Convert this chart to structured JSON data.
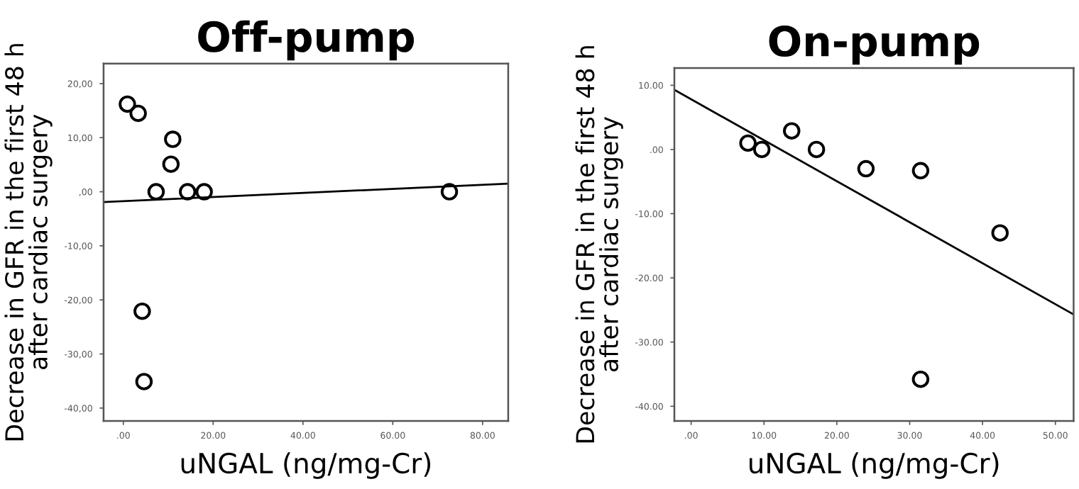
{
  "chart_data": [
    {
      "type": "scatter",
      "title": "Off-pump",
      "xlabel": "uNGAL (ng/mg-Cr)",
      "ylabel": "Decrease in GFR in the first 48 h\nafter cardiac surgery",
      "grid": false,
      "legend": false,
      "xlim": [
        -4.4,
        85.7
      ],
      "ylim": [
        -42.4,
        23.7
      ],
      "xticks": [
        {
          "value": 0,
          "label": ".00"
        },
        {
          "value": 20,
          "label": "20.00"
        },
        {
          "value": 40,
          "label": "40.00"
        },
        {
          "value": 60,
          "label": "60.00"
        },
        {
          "value": 80,
          "label": "80.00"
        }
      ],
      "yticks": [
        {
          "value": 20,
          "label": "20,00"
        },
        {
          "value": 10,
          "label": "10,00"
        },
        {
          "value": 0,
          "label": ",00"
        },
        {
          "value": -10,
          "label": "-10,00"
        },
        {
          "value": -20,
          "label": "-20,00"
        },
        {
          "value": -30,
          "label": "-30,00"
        },
        {
          "value": -40,
          "label": "-40,00"
        }
      ],
      "series": [
        {
          "marker": "circle",
          "color": "#000000",
          "x": [
            0.9,
            3.3,
            11.0,
            10.6,
            7.3,
            14.3,
            18.0,
            72.6,
            4.2,
            4.6
          ],
          "values": [
            16.2,
            14.5,
            9.7,
            5.1,
            0,
            0,
            0,
            0,
            -22.1,
            -35.1
          ]
        },
        {
          "type": "line",
          "color": "#000000",
          "x": [
            -4.4,
            85.7
          ],
          "values": [
            -1.9,
            1.5
          ]
        }
      ]
    },
    {
      "type": "scatter",
      "title": "On-pump",
      "xlabel": "uNGAL (ng/mg-Cr)",
      "ylabel": "Decrease in GFR in the first 48 h\nafter cardiac surgery",
      "grid": false,
      "legend": false,
      "xlim": [
        -2.3,
        52.5
      ],
      "ylim": [
        -42.3,
        12.7
      ],
      "xticks": [
        {
          "value": 0,
          "label": ".00"
        },
        {
          "value": 10,
          "label": "10.00"
        },
        {
          "value": 20,
          "label": "20.00"
        },
        {
          "value": 30,
          "label": "30.00"
        },
        {
          "value": 40,
          "label": "40.00"
        },
        {
          "value": 50,
          "label": "50.00"
        }
      ],
      "yticks": [
        {
          "value": 10,
          "label": "10.00"
        },
        {
          "value": 0,
          "label": ".00"
        },
        {
          "value": -10,
          "label": "-10.00"
        },
        {
          "value": -20,
          "label": "-20.00"
        },
        {
          "value": -30,
          "label": "-30.00"
        },
        {
          "value": -40,
          "label": "-40.00"
        }
      ],
      "series": [
        {
          "marker": "circle",
          "color": "#000000",
          "x": [
            7.8,
            9.7,
            13.8,
            17.2,
            24.0,
            31.5,
            42.4,
            31.5
          ],
          "values": [
            1.0,
            0,
            2.9,
            0,
            -3.0,
            -3.3,
            -13.0,
            -35.8
          ]
        },
        {
          "type": "line",
          "color": "#000000",
          "x": [
            -2.3,
            52.5
          ],
          "values": [
            9.3,
            -25.7
          ]
        }
      ]
    }
  ]
}
